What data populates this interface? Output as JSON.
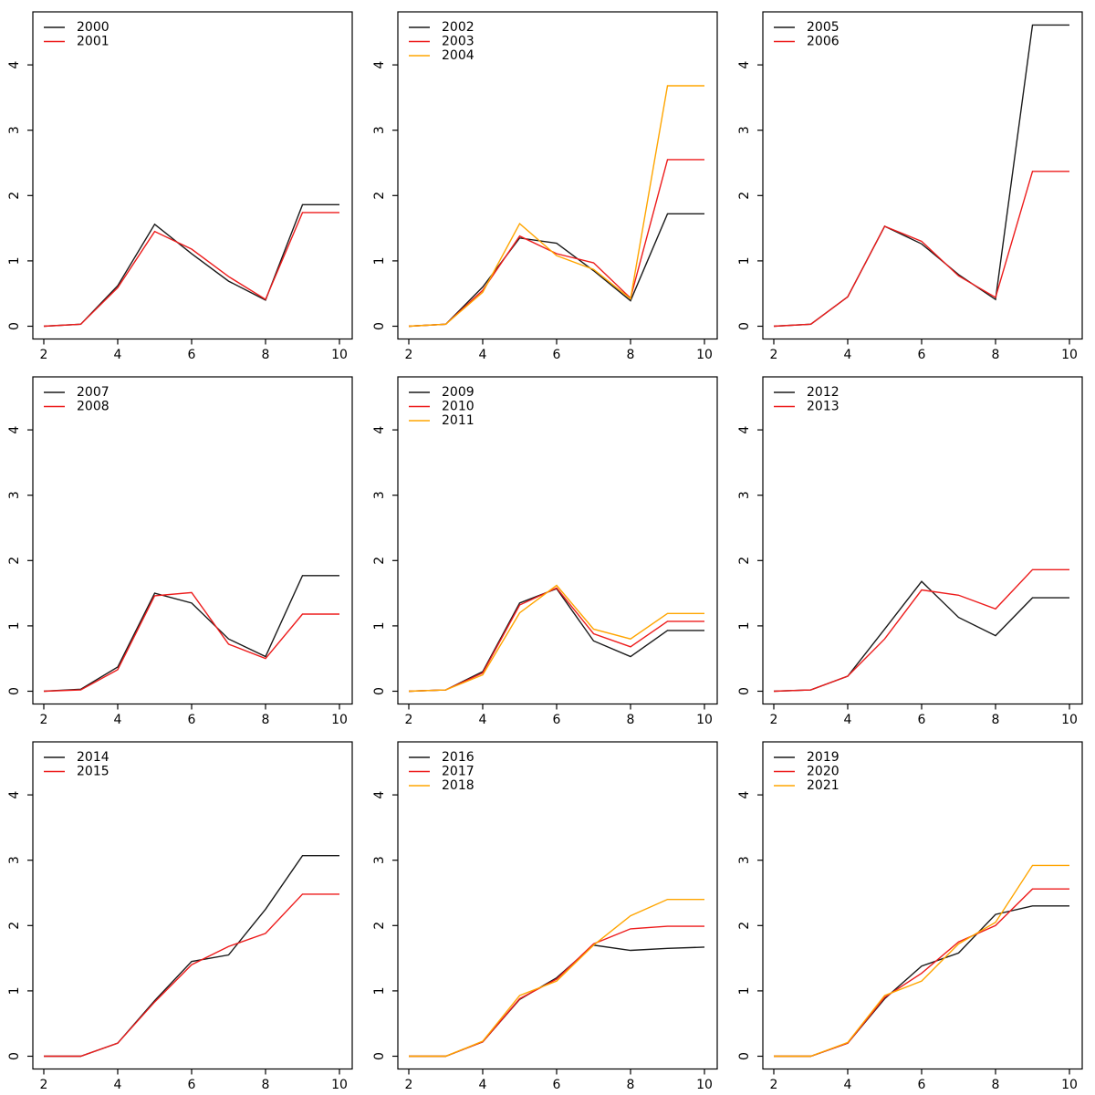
{
  "figure": {
    "background": "#ffffff",
    "grid_rows": 3,
    "grid_cols": 3,
    "axis_color": "#000000",
    "series_palette": {
      "first": "#1a1a1a",
      "second": "#ed1c1c",
      "third": "#ffa500"
    }
  },
  "chart_data": [
    {
      "type": "line",
      "x": [
        2,
        3,
        4,
        5,
        6,
        7,
        8,
        9,
        10
      ],
      "x_ticks": [
        2,
        4,
        6,
        8,
        10
      ],
      "y_ticks": [
        0,
        1,
        2,
        3,
        4
      ],
      "xlim": [
        1.68,
        10.37
      ],
      "ylim": [
        -0.2,
        4.81
      ],
      "grid": false,
      "legend_position": "top-left",
      "series": [
        {
          "name": "2000",
          "color": "#1a1a1a",
          "values": [
            0,
            0.03,
            0.62,
            1.56,
            1.11,
            0.69,
            0.4,
            1.86,
            1.86
          ]
        },
        {
          "name": "2001",
          "color": "#ed1c1c",
          "values": [
            0,
            0.03,
            0.59,
            1.45,
            1.18,
            0.76,
            0.41,
            1.74,
            1.74
          ]
        }
      ]
    },
    {
      "type": "line",
      "x": [
        2,
        3,
        4,
        5,
        6,
        7,
        8,
        9,
        10
      ],
      "x_ticks": [
        2,
        4,
        6,
        8,
        10
      ],
      "y_ticks": [
        0,
        1,
        2,
        3,
        4
      ],
      "xlim": [
        1.68,
        10.37
      ],
      "ylim": [
        -0.2,
        4.81
      ],
      "grid": false,
      "legend_position": "top-left",
      "series": [
        {
          "name": "2002",
          "color": "#1a1a1a",
          "values": [
            0,
            0.03,
            0.6,
            1.35,
            1.27,
            0.85,
            0.39,
            1.72,
            1.72
          ]
        },
        {
          "name": "2003",
          "color": "#ed1c1c",
          "values": [
            0,
            0.03,
            0.55,
            1.38,
            1.11,
            0.97,
            0.43,
            2.55,
            2.55
          ]
        },
        {
          "name": "2004",
          "color": "#ffa500",
          "values": [
            0,
            0.03,
            0.52,
            1.57,
            1.08,
            0.87,
            0.42,
            3.68,
            3.68
          ]
        }
      ]
    },
    {
      "type": "line",
      "x": [
        2,
        3,
        4,
        5,
        6,
        7,
        8,
        9,
        10
      ],
      "x_ticks": [
        2,
        4,
        6,
        8,
        10
      ],
      "y_ticks": [
        0,
        1,
        2,
        3,
        4
      ],
      "xlim": [
        1.68,
        10.37
      ],
      "ylim": [
        -0.2,
        4.81
      ],
      "grid": false,
      "legend_position": "top-left",
      "series": [
        {
          "name": "2005",
          "color": "#1a1a1a",
          "values": [
            0,
            0.03,
            0.45,
            1.53,
            1.26,
            0.79,
            0.41,
            4.61,
            4.61
          ]
        },
        {
          "name": "2006",
          "color": "#ed1c1c",
          "values": [
            0,
            0.03,
            0.45,
            1.53,
            1.3,
            0.77,
            0.44,
            2.37,
            2.37
          ]
        }
      ]
    },
    {
      "type": "line",
      "x": [
        2,
        3,
        4,
        5,
        6,
        7,
        8,
        9,
        10
      ],
      "x_ticks": [
        2,
        4,
        6,
        8,
        10
      ],
      "y_ticks": [
        0,
        1,
        2,
        3,
        4
      ],
      "xlim": [
        1.68,
        10.37
      ],
      "ylim": [
        -0.2,
        4.81
      ],
      "grid": false,
      "legend_position": "top-left",
      "series": [
        {
          "name": "2007",
          "color": "#1a1a1a",
          "values": [
            0,
            0.03,
            0.37,
            1.5,
            1.35,
            0.8,
            0.53,
            1.77,
            1.77
          ]
        },
        {
          "name": "2008",
          "color": "#ed1c1c",
          "values": [
            0,
            0.02,
            0.33,
            1.46,
            1.51,
            0.72,
            0.5,
            1.18,
            1.18
          ]
        }
      ]
    },
    {
      "type": "line",
      "x": [
        2,
        3,
        4,
        5,
        6,
        7,
        8,
        9,
        10
      ],
      "x_ticks": [
        2,
        4,
        6,
        8,
        10
      ],
      "y_ticks": [
        0,
        1,
        2,
        3,
        4
      ],
      "xlim": [
        1.68,
        10.37
      ],
      "ylim": [
        -0.2,
        4.81
      ],
      "grid": false,
      "legend_position": "top-left",
      "series": [
        {
          "name": "2009",
          "color": "#1a1a1a",
          "values": [
            0,
            0.02,
            0.3,
            1.35,
            1.57,
            0.77,
            0.53,
            0.93,
            0.93
          ]
        },
        {
          "name": "2010",
          "color": "#ed1c1c",
          "values": [
            0,
            0.02,
            0.28,
            1.32,
            1.58,
            0.88,
            0.68,
            1.07,
            1.07
          ]
        },
        {
          "name": "2011",
          "color": "#ffa500",
          "values": [
            0,
            0.02,
            0.25,
            1.2,
            1.62,
            0.95,
            0.8,
            1.19,
            1.19
          ]
        }
      ]
    },
    {
      "type": "line",
      "x": [
        2,
        3,
        4,
        5,
        6,
        7,
        8,
        9,
        10
      ],
      "x_ticks": [
        2,
        4,
        6,
        8,
        10
      ],
      "y_ticks": [
        0,
        1,
        2,
        3,
        4
      ],
      "xlim": [
        1.68,
        10.37
      ],
      "ylim": [
        -0.2,
        4.81
      ],
      "grid": false,
      "legend_position": "top-left",
      "series": [
        {
          "name": "2012",
          "color": "#1a1a1a",
          "values": [
            0,
            0.02,
            0.23,
            0.95,
            1.68,
            1.13,
            0.85,
            1.43,
            1.43
          ]
        },
        {
          "name": "2013",
          "color": "#ed1c1c",
          "values": [
            0,
            0.02,
            0.23,
            0.8,
            1.55,
            1.47,
            1.26,
            1.86,
            1.86
          ]
        }
      ]
    },
    {
      "type": "line",
      "x": [
        2,
        3,
        4,
        5,
        6,
        7,
        8,
        9,
        10
      ],
      "x_ticks": [
        2,
        4,
        6,
        8,
        10
      ],
      "y_ticks": [
        0,
        1,
        2,
        3,
        4
      ],
      "xlim": [
        1.68,
        10.37
      ],
      "ylim": [
        -0.2,
        4.81
      ],
      "grid": false,
      "legend_position": "top-left",
      "series": [
        {
          "name": "2014",
          "color": "#1a1a1a",
          "values": [
            0,
            0,
            0.2,
            0.85,
            1.45,
            1.55,
            2.25,
            3.07,
            3.07
          ]
        },
        {
          "name": "2015",
          "color": "#ed1c1c",
          "values": [
            0,
            0,
            0.2,
            0.83,
            1.4,
            1.68,
            1.88,
            2.48,
            2.48
          ]
        }
      ]
    },
    {
      "type": "line",
      "x": [
        2,
        3,
        4,
        5,
        6,
        7,
        8,
        9,
        10
      ],
      "x_ticks": [
        2,
        4,
        6,
        8,
        10
      ],
      "y_ticks": [
        0,
        1,
        2,
        3,
        4
      ],
      "xlim": [
        1.68,
        10.37
      ],
      "ylim": [
        -0.2,
        4.81
      ],
      "grid": false,
      "legend_position": "top-left",
      "series": [
        {
          "name": "2016",
          "color": "#1a1a1a",
          "values": [
            0,
            0,
            0.22,
            0.87,
            1.2,
            1.7,
            1.62,
            1.65,
            1.67
          ]
        },
        {
          "name": "2017",
          "color": "#ed1c1c",
          "values": [
            0,
            0,
            0.22,
            0.88,
            1.18,
            1.72,
            1.95,
            1.99,
            1.99
          ]
        },
        {
          "name": "2018",
          "color": "#ffa500",
          "values": [
            0,
            0,
            0.23,
            0.93,
            1.15,
            1.7,
            2.15,
            2.4,
            2.4
          ]
        }
      ]
    },
    {
      "type": "line",
      "x": [
        2,
        3,
        4,
        5,
        6,
        7,
        8,
        9,
        10
      ],
      "x_ticks": [
        2,
        4,
        6,
        8,
        10
      ],
      "y_ticks": [
        0,
        1,
        2,
        3,
        4
      ],
      "xlim": [
        1.68,
        10.37
      ],
      "ylim": [
        -0.2,
        4.81
      ],
      "grid": false,
      "legend_position": "top-left",
      "series": [
        {
          "name": "2019",
          "color": "#1a1a1a",
          "values": [
            0,
            0,
            0.2,
            0.88,
            1.38,
            1.58,
            2.17,
            2.3,
            2.3
          ]
        },
        {
          "name": "2020",
          "color": "#ed1c1c",
          "values": [
            0,
            0,
            0.2,
            0.9,
            1.27,
            1.75,
            2.0,
            2.56,
            2.56
          ]
        },
        {
          "name": "2021",
          "color": "#ffa500",
          "values": [
            0,
            0,
            0.21,
            0.93,
            1.15,
            1.72,
            2.05,
            2.92,
            2.92
          ]
        }
      ]
    }
  ]
}
